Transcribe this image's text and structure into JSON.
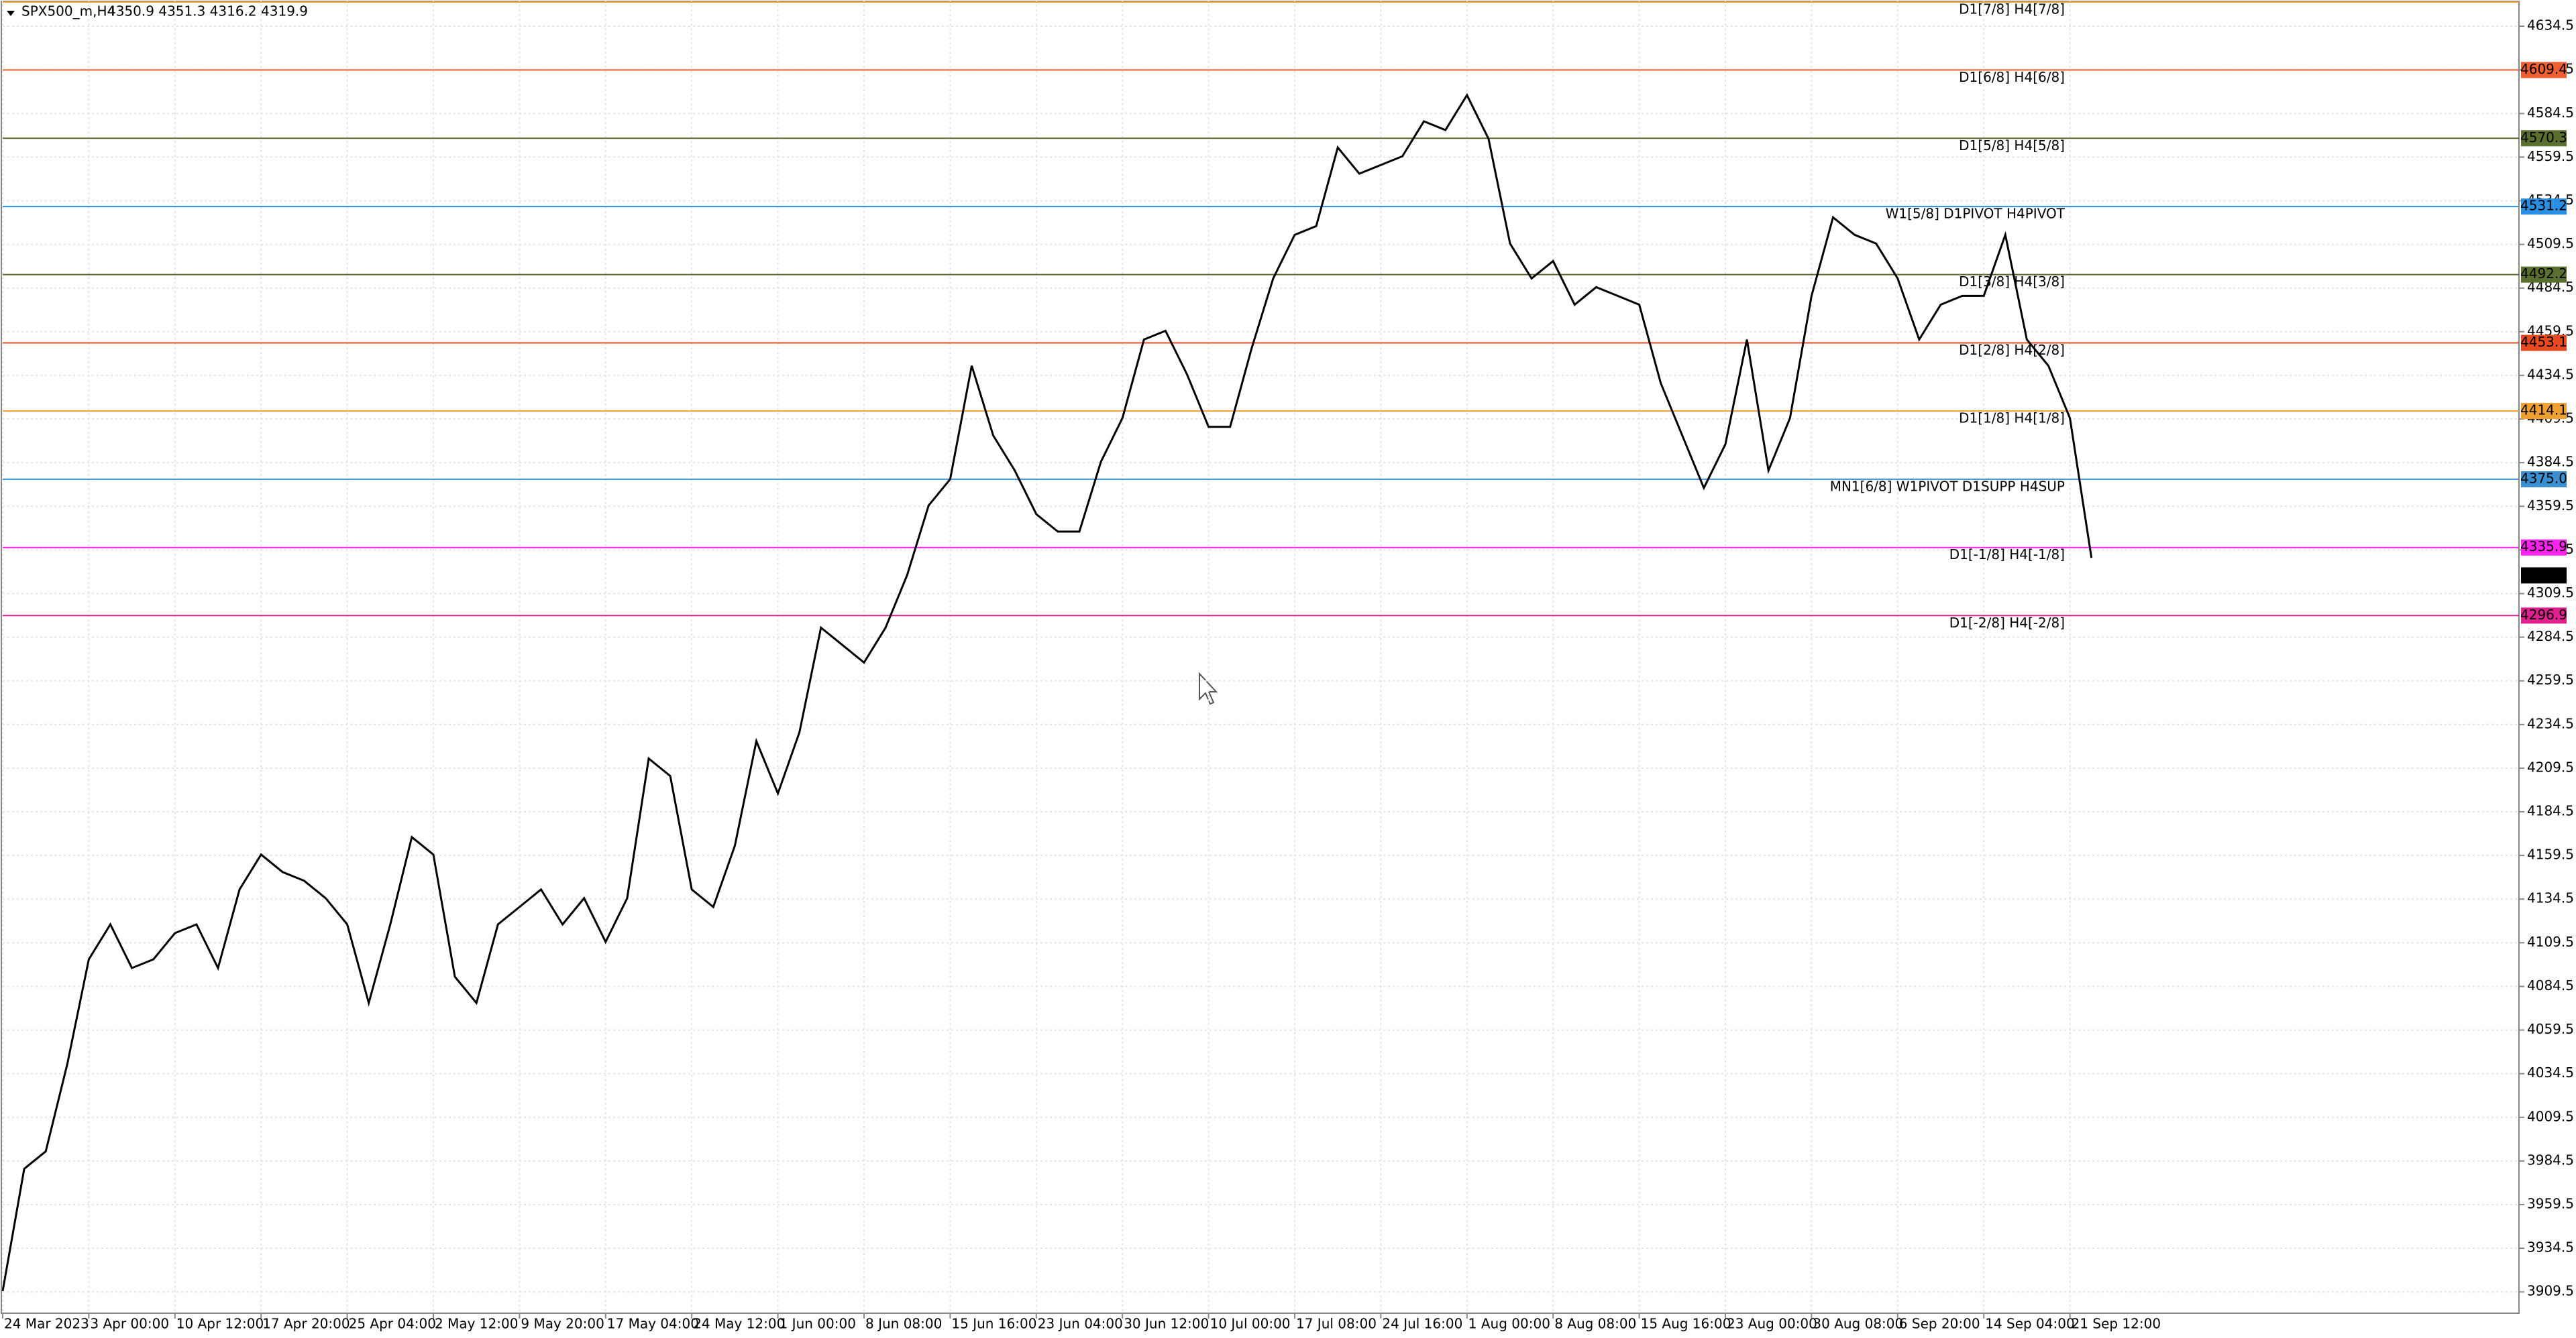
{
  "chart_data": {
    "type": "line",
    "title": "SPX500_m,H4",
    "quote": "4350.9 4351.3 4316.2 4319.9",
    "categories": [
      "24 Mar 2023",
      null,
      null,
      null,
      "3 Apr 00:00",
      null,
      null,
      null,
      "10 Apr 12:00",
      null,
      null,
      null,
      "17 Apr 20:00",
      null,
      null,
      null,
      "25 Apr 04:00",
      null,
      null,
      null,
      "2 May 12:00",
      null,
      null,
      null,
      "9 May 20:00",
      null,
      null,
      null,
      "17 May 04:00",
      null,
      null,
      null,
      "24 May 12:00",
      null,
      null,
      null,
      "1 Jun 00:00",
      null,
      null,
      null,
      "8 Jun 08:00",
      null,
      null,
      null,
      "15 Jun 16:00",
      null,
      null,
      null,
      "23 Jun 04:00",
      null,
      null,
      null,
      "30 Jun 12:00",
      null,
      null,
      null,
      "10 Jul 00:00",
      null,
      null,
      null,
      "17 Jul 08:00",
      null,
      null,
      null,
      "24 Jul 16:00",
      null,
      null,
      null,
      "1 Aug 00:00",
      null,
      null,
      null,
      "8 Aug 08:00",
      null,
      null,
      null,
      "15 Aug 16:00",
      null,
      null,
      null,
      "23 Aug 00:00",
      null,
      null,
      null,
      "30 Aug 08:00",
      null,
      null,
      null,
      "6 Sep 20:00",
      null,
      null,
      null,
      "14 Sep 04:00",
      null,
      null,
      null,
      "21 Sep 12:00",
      null
    ],
    "series": [
      {
        "name": "SPX500_m",
        "color": "#000000",
        "values": [
          3910,
          3980,
          3990,
          4040,
          4100,
          4120,
          4095,
          4100,
          4115,
          4120,
          4095,
          4140,
          4160,
          4150,
          4145,
          4135,
          4120,
          4075,
          4120,
          4170,
          4160,
          4090,
          4075,
          4120,
          4130,
          4140,
          4120,
          4135,
          4110,
          4135,
          4215,
          4205,
          4140,
          4130,
          4165,
          4225,
          4195,
          4230,
          4290,
          4280,
          4270,
          4290,
          4320,
          4360,
          4375,
          4440,
          4400,
          4380,
          4355,
          4345,
          4345,
          4385,
          4410,
          4455,
          4460,
          4435,
          4405,
          4405,
          4450,
          4490,
          4515,
          4520,
          4565,
          4550,
          4555,
          4560,
          4580,
          4575,
          4595,
          4570,
          4510,
          4490,
          4500,
          4475,
          4485,
          4480,
          4475,
          4430,
          4400,
          4370,
          4395,
          4455,
          4380,
          4410,
          4480,
          4525,
          4515,
          4510,
          4490,
          4455,
          4475,
          4480,
          4480,
          4515,
          4455,
          4440,
          4410,
          4330
        ]
      }
    ],
    "ylim": [
      3897.3,
      4649.5
    ],
    "yticks": [
      3909.5,
      3934.5,
      3959.5,
      3984.5,
      4009.5,
      4034.5,
      4059.5,
      4084.5,
      4109.5,
      4134.5,
      4159.5,
      4184.5,
      4209.5,
      4234.5,
      4259.5,
      4284.5,
      4309.5,
      4334.5,
      4359.5,
      4384.5,
      4409.5,
      4434.5,
      4459.5,
      4484.5,
      4509.5,
      4534.5,
      4559.5,
      4584.5,
      4609.5,
      4634.5
    ],
    "grid": true,
    "levels": [
      {
        "name": "D1[7/8] H4[7/8]",
        "color": "#f0a030",
        "value": 4648.3,
        "price_tag": false
      },
      {
        "name": "D1[6/8] H4[6/8]",
        "color": "#f06030",
        "value": 4609.4
      },
      {
        "name": "D1[5/8] H4[5/8]",
        "color": "#5a6e2e",
        "value": 4570.3
      },
      {
        "name": "W1[5/8] D1PIVOT H4PIVOT",
        "color": "#2a8fe0",
        "value": 4531.2
      },
      {
        "name": "D1[3/8] H4[3/8]",
        "color": "#5a6e2e",
        "value": 4492.2
      },
      {
        "name": "D1[2/8] H4[2/8]",
        "color": "#e84a20",
        "value": 4453.1
      },
      {
        "name": "D1[1/8] H4[1/8]",
        "color": "#f0a030",
        "value": 4414.1
      },
      {
        "name": "MN1[6/8] W1PIVOT D1SUPP H4SUP",
        "color": "#3a8fd0",
        "value": 4375,
        "value_label": "4375.0"
      },
      {
        "name": "D1[-1/8] H4[-1/8]",
        "color": "#ff22ee",
        "value": 4335.9
      },
      {
        "name": "D1[-2/8] H4[-2/8]",
        "color": "#e0208f",
        "value": 4296.9
      }
    ],
    "current_price": 4319.9
  }
}
